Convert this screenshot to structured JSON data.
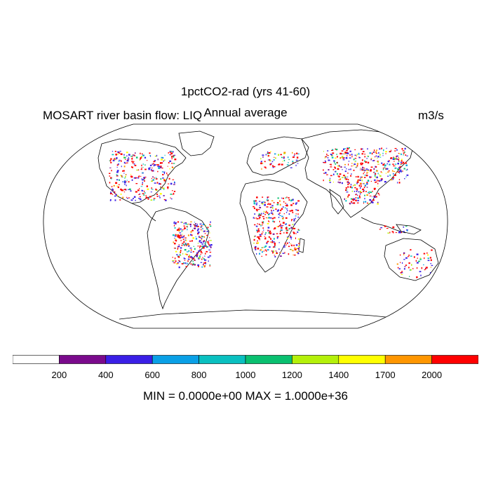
{
  "title": "1pctCO2-rad (yrs 41-60)",
  "subtitle": "Annual average",
  "variable_label": "MOSART river basin flow: LIQ",
  "units": "m3/s",
  "stats": "MIN = 0.0000e+00 MAX = 1.0000e+36",
  "colorbar": {
    "colors": [
      "#ffffff",
      "#7a0a8c",
      "#3a1fe6",
      "#0aa0e6",
      "#0ac0c0",
      "#0ac070",
      "#b4f00a",
      "#ffff00",
      "#ff9600",
      "#ff0000"
    ],
    "ticks": [
      "200",
      "400",
      "600",
      "800",
      "1000",
      "1200",
      "1400",
      "1700",
      "2000"
    ]
  }
}
